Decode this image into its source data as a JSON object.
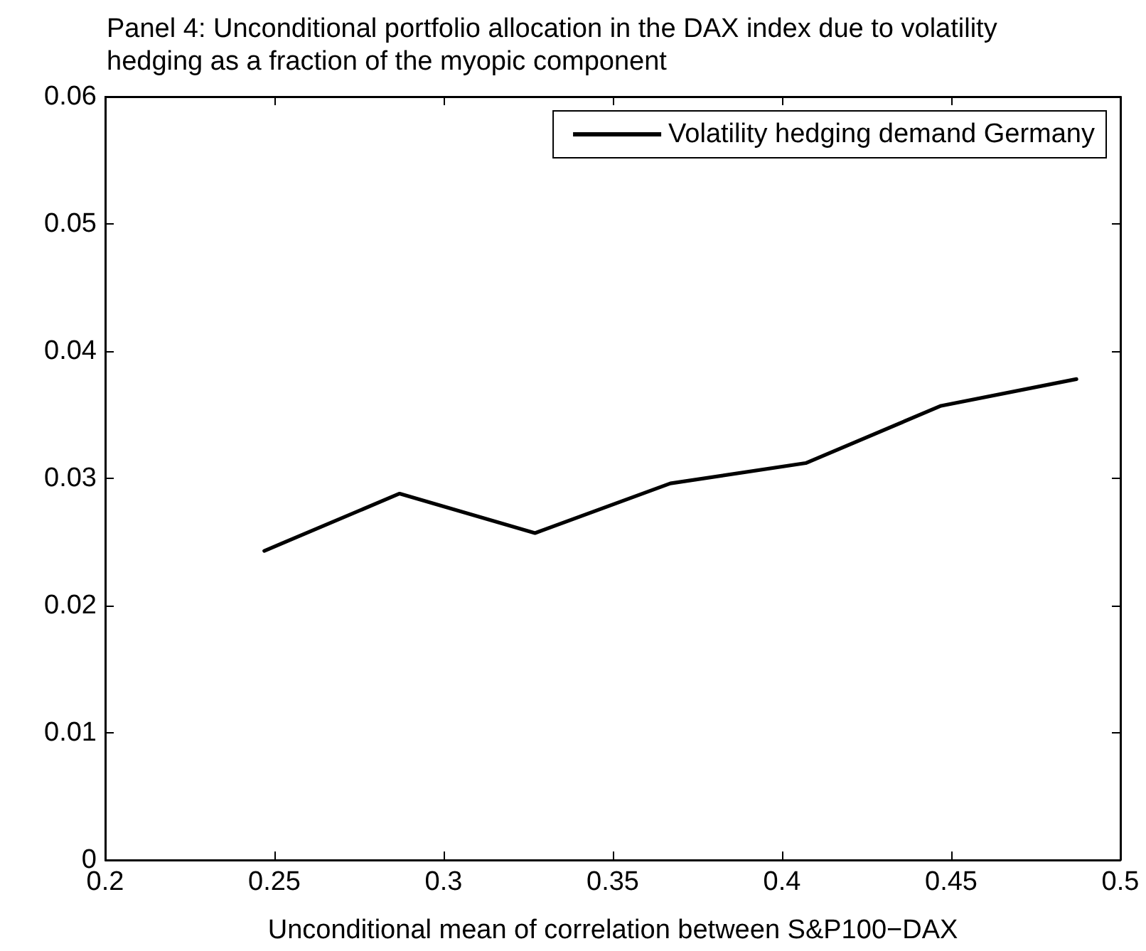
{
  "chart_data": {
    "type": "line",
    "title": "Panel 4: Unconditional portfolio allocation in the DAX index due to volatility hedging as a fraction of the myopic component",
    "xlabel": "Unconditional mean of correlation between S&P100−DAX",
    "x": [
      0.247,
      0.287,
      0.327,
      0.367,
      0.407,
      0.447,
      0.487
    ],
    "series": [
      {
        "name": "Volatility hedging demand Germany",
        "color": "#000000",
        "values": [
          0.0243,
          0.0288,
          0.0257,
          0.0296,
          0.0312,
          0.0357,
          0.0378
        ]
      }
    ],
    "xlim": [
      0.2,
      0.5
    ],
    "xticks": [
      0.2,
      0.25,
      0.3,
      0.35,
      0.4,
      0.45,
      0.5
    ],
    "ylim": [
      0,
      0.06
    ],
    "yticks": [
      0,
      0.01,
      0.02,
      0.03,
      0.04,
      0.05,
      0.06
    ],
    "legend": "top right",
    "marker": "none",
    "line_style": "solid"
  }
}
